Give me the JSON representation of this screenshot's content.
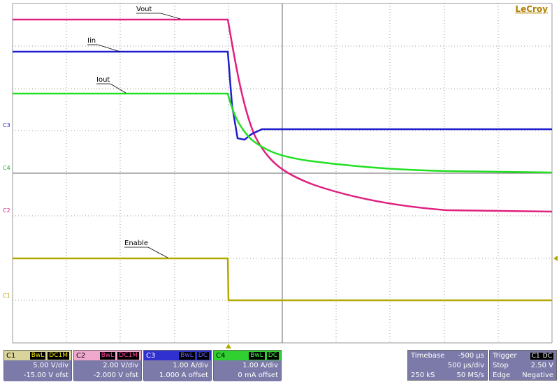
{
  "brand": "LeCroy",
  "traces": [
    {
      "label": "Vout"
    },
    {
      "label": "Iin"
    },
    {
      "label": "Iout"
    },
    {
      "label": "Enable"
    }
  ],
  "channel_markers": [
    "C3",
    "C4",
    "C2",
    "C1"
  ],
  "channels": [
    {
      "name": "C1",
      "bwl": "BwL",
      "coupling": "DC1M",
      "scale": "5.00 V/div",
      "offset": "-15.00 V ofst"
    },
    {
      "name": "C2",
      "bwl": "BwL",
      "coupling": "DC1M",
      "scale": "2.00 V/div",
      "offset": "-2.000 V ofst"
    },
    {
      "name": "C3",
      "bwl": "BwL",
      "coupling": "DC",
      "scale": "1.00 A/div",
      "offset": "1.000 A offset"
    },
    {
      "name": "C4",
      "bwl": "BwL",
      "coupling": "DC",
      "scale": "1.00 A/div",
      "offset": "0 mA offset"
    }
  ],
  "timebase": {
    "title": "Timebase",
    "delay": "-500 µs",
    "scale": "500 µs/div",
    "samples": "250 kS",
    "rate": "50 MS/s"
  },
  "trigger": {
    "title": "Trigger",
    "channel": "C1",
    "coupling": "DC",
    "mode": "Stop",
    "level": "2.50 V",
    "type": "Edge",
    "slope": "Negative"
  }
}
